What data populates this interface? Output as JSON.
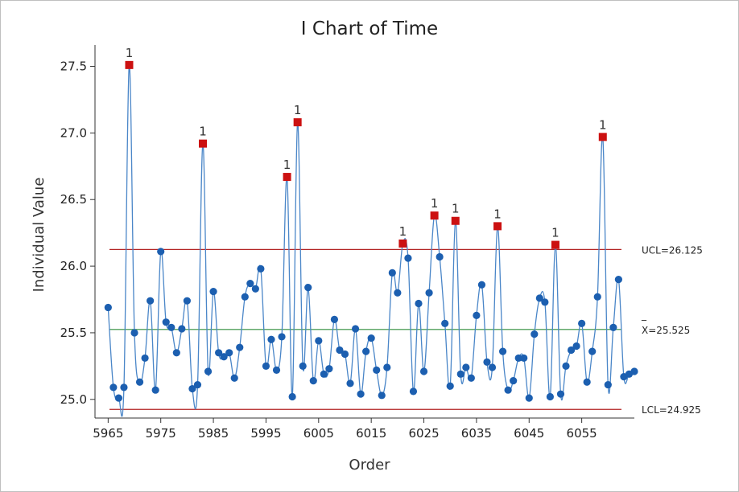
{
  "chart_data": {
    "type": "line",
    "title": "I Chart of Time",
    "xlabel": "Order",
    "ylabel": "Individual Value",
    "xlim": [
      5962.5,
      6065
    ],
    "ylim": [
      24.86,
      27.66
    ],
    "x_ticks": [
      "5965",
      "5975",
      "5985",
      "5995",
      "6005",
      "6015",
      "6025",
      "6035",
      "6045",
      "6055"
    ],
    "y_ticks": [
      "25.0",
      "25.5",
      "26.0",
      "26.5",
      "27.0",
      "27.5"
    ],
    "limits": {
      "ucl": {
        "value": 26.125,
        "label": "UCL=26.125"
      },
      "center": {
        "value": 25.525,
        "bar": "_",
        "label": "X=25.525"
      },
      "lcl": {
        "value": 24.925,
        "label": "LCL=24.925"
      }
    },
    "flag_text": "1",
    "x_start": 5965,
    "series": [
      {
        "values": [
          25.69,
          25.09,
          25.01,
          25.09,
          27.51,
          25.5,
          25.13,
          25.31,
          25.74,
          25.07,
          26.11,
          25.58,
          25.54,
          25.35,
          25.53,
          25.74,
          25.08,
          25.11,
          26.92,
          25.21,
          25.81,
          25.35,
          25.32,
          25.35,
          25.16,
          25.39,
          25.77,
          25.87,
          25.83,
          25.98,
          25.25,
          25.45,
          25.22,
          25.47,
          26.67,
          25.02,
          27.08,
          25.25,
          25.84,
          25.14,
          25.44,
          25.19,
          25.23,
          25.6,
          25.37,
          25.34,
          25.12,
          25.53,
          25.04,
          25.36,
          25.46,
          25.22,
          25.03,
          25.24,
          25.95,
          25.8,
          26.17,
          26.06,
          25.06,
          25.72,
          25.21,
          25.8,
          26.38,
          26.07,
          25.57,
          25.1,
          26.34,
          25.19,
          25.24,
          25.16,
          25.63,
          25.86,
          25.28,
          25.24,
          26.3,
          25.36,
          25.07,
          25.14,
          25.31,
          25.31,
          25.01,
          25.49,
          25.76,
          25.73,
          25.02,
          26.16,
          25.04,
          25.25,
          25.37,
          25.4,
          25.57,
          25.13,
          25.36,
          25.77,
          26.97,
          25.11,
          25.54,
          25.9,
          25.17,
          25.19,
          25.21
        ]
      }
    ]
  },
  "colors": {
    "line": "#4a86c8",
    "point": "#1c5fb0",
    "flag_point": "#cc1111",
    "ucl_lcl": "#b22222",
    "center": "#2e8b3a",
    "axis": "#333333",
    "frame": "#bfbfbf"
  }
}
